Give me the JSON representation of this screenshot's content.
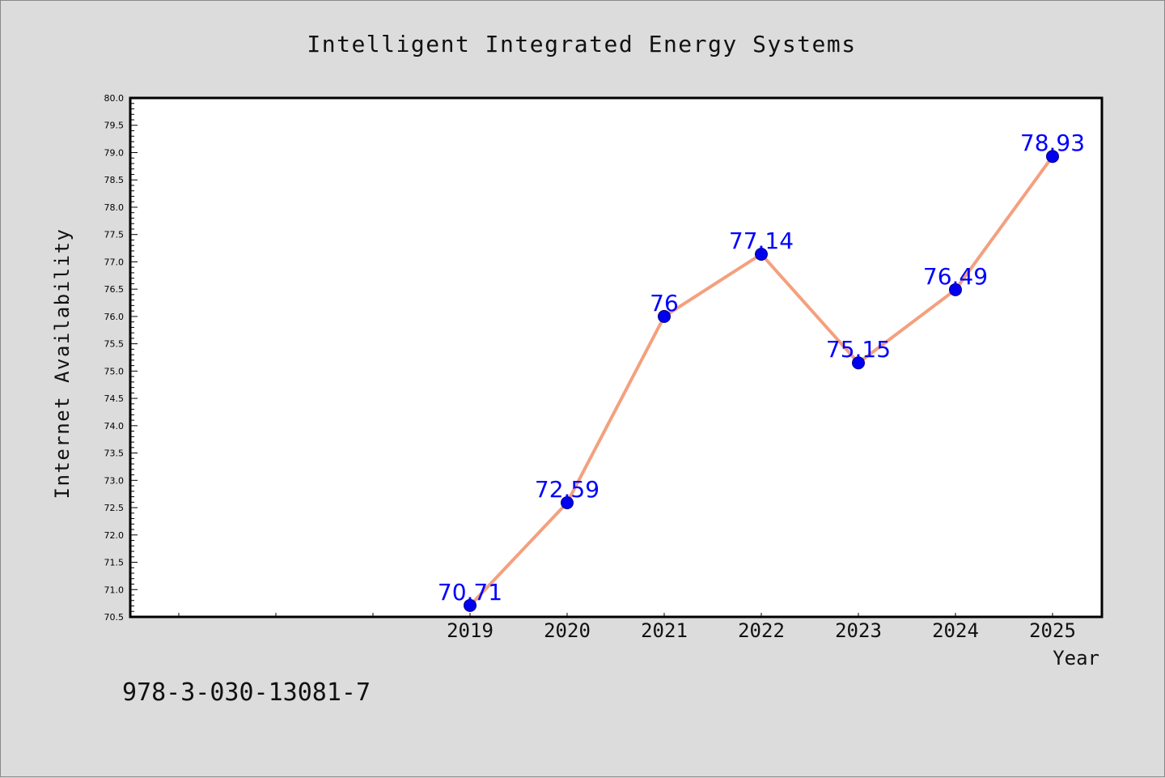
{
  "chart_data": {
    "type": "line",
    "title": "Intelligent Integrated Energy Systems",
    "xlabel": "Year",
    "ylabel": "Internet Availability",
    "x": [
      "2019",
      "2020",
      "2021",
      "2022",
      "2023",
      "2024",
      "2025"
    ],
    "series": [
      {
        "values": [
          70.71,
          72.59,
          76,
          77.14,
          75.15,
          76.49,
          78.93
        ]
      }
    ],
    "data_labels": [
      "70.71",
      "72.59",
      "76",
      "77.14",
      "75.15",
      "76.49",
      "78.93"
    ],
    "ylim": [
      70.5,
      80.0
    ],
    "y_major_step": 0.5,
    "x_extra_ticks_before": 3,
    "grid": false,
    "line_color": "#f4a07e",
    "marker_color": "#0000ee",
    "label_color": "#0000ff"
  },
  "footer": {
    "isbn": "978-3-030-13081-7"
  }
}
